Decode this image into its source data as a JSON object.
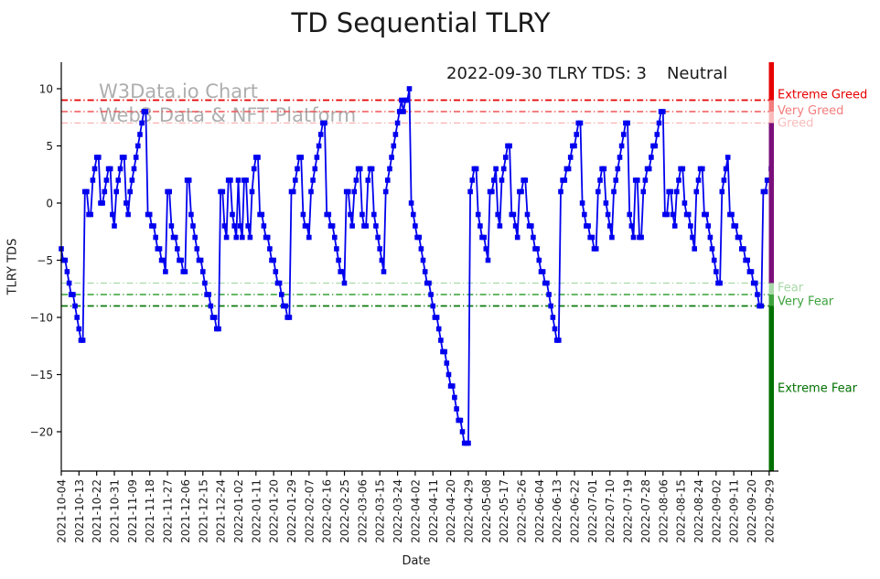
{
  "title": "TD Sequential TLRY",
  "watermark": {
    "line1": "W3Data.io Chart",
    "line2": "Web3 Data & NFT Platform",
    "color": "#aeaeae"
  },
  "chart_data": {
    "type": "line",
    "title": "TD Sequential TLRY",
    "xlabel": "Date",
    "ylabel": "TLRY TDS",
    "ylim": [
      -23.4,
      12.36
    ],
    "grid": false,
    "legend_position": "none",
    "yticks": [
      10,
      5,
      0,
      -5,
      -10,
      -15,
      -20
    ],
    "ytick_labels": [
      "10",
      "5",
      "0",
      "−5",
      "−10",
      "−15",
      "−20"
    ],
    "x_tick_every": 9,
    "x_tick_labels": [
      "2021-10-04",
      "2021-10-13",
      "2021-10-22",
      "2021-10-31",
      "2021-11-09",
      "2021-11-18",
      "2021-11-27",
      "2021-12-06",
      "2021-12-15",
      "2021-12-24",
      "2022-01-02",
      "2022-01-11",
      "2022-01-20",
      "2022-01-29",
      "2022-02-07",
      "2022-02-16",
      "2022-02-25",
      "2022-03-06",
      "2022-03-15",
      "2022-03-24",
      "2022-04-02",
      "2022-04-11",
      "2022-04-20",
      "2022-04-29",
      "2022-05-08",
      "2022-05-17",
      "2022-05-26",
      "2022-06-04",
      "2022-06-13",
      "2022-06-22",
      "2022-07-01",
      "2022-07-10",
      "2022-07-19",
      "2022-07-28",
      "2022-08-06",
      "2022-08-15",
      "2022-08-24",
      "2022-09-02",
      "2022-09-11",
      "2022-09-20",
      "2022-09-29"
    ],
    "annotations": [
      {
        "text": "2022-09-30 TLRY TDS: 3",
        "color": "#1a1a1a"
      },
      {
        "text": "Neutral",
        "color": "#800080"
      }
    ],
    "thresholds": [
      {
        "value": 9,
        "color": "#e60000",
        "width": 1.7
      },
      {
        "value": 8,
        "color": "#f05454",
        "width": 1.5
      },
      {
        "value": 7,
        "color": "#f9b0b0",
        "width": 1.3
      },
      {
        "value": -7,
        "color": "#a6d9a6",
        "width": 1.3
      },
      {
        "value": -8,
        "color": "#33a033",
        "width": 1.5
      },
      {
        "value": -9,
        "color": "#0b7a0b",
        "width": 1.8
      }
    ],
    "zones": [
      {
        "label": "Extreme Greed",
        "color": "#e60000",
        "from": 9,
        "to": 12.36,
        "label_v": 9.5
      },
      {
        "label": "Very Greed",
        "color": "#f37d7d",
        "from": 8,
        "to": 9,
        "label_v": 8.1
      },
      {
        "label": "Greed",
        "color": "#f8bcbc",
        "from": 7,
        "to": 8,
        "label_v": 7.0
      },
      {
        "label": "",
        "color": "#7a0f7a",
        "from": -7,
        "to": 7,
        "label_v": null
      },
      {
        "label": "Fear",
        "color": "#a8d8a8",
        "from": -8,
        "to": -7,
        "label_v": -7.4
      },
      {
        "label": "Very Fear",
        "color": "#3da23d",
        "from": -9,
        "to": -8,
        "label_v": -8.6
      },
      {
        "label": "Extreme Fear",
        "color": "#007000",
        "from": -23.4,
        "to": -9,
        "label_v": -16.2
      }
    ],
    "series": [
      {
        "name": "TLRY TDS",
        "color": "#0000ee",
        "marker": "square",
        "values": [
          -4,
          -5,
          -5,
          -6,
          -7,
          -8,
          -8,
          -9,
          -10,
          -11,
          -12,
          -12,
          1,
          1,
          -1,
          -1,
          2,
          3,
          4,
          4,
          0,
          0,
          1,
          2,
          3,
          3,
          -1,
          -2,
          1,
          2,
          3,
          4,
          4,
          0,
          -1,
          1,
          2,
          3,
          4,
          5,
          6,
          7,
          8,
          8,
          -1,
          -1,
          -2,
          -2,
          -3,
          -4,
          -4,
          -5,
          -5,
          -6,
          1,
          1,
          -2,
          -3,
          -3,
          -4,
          -5,
          -5,
          -6,
          -6,
          2,
          2,
          -1,
          -2,
          -3,
          -4,
          -5,
          -5,
          -6,
          -7,
          -8,
          -8,
          -9,
          -10,
          -10,
          -11,
          -11,
          1,
          1,
          -2,
          -3,
          2,
          2,
          -1,
          -2,
          -3,
          2,
          -2,
          -3,
          2,
          2,
          -2,
          -3,
          1,
          3,
          4,
          4,
          -1,
          -1,
          -2,
          -3,
          -3,
          -4,
          -5,
          -5,
          -6,
          -7,
          -7,
          -8,
          -9,
          -9,
          -10,
          -10,
          1,
          1,
          2,
          3,
          4,
          4,
          -1,
          -2,
          -2,
          -3,
          1,
          2,
          3,
          4,
          5,
          6,
          7,
          7,
          -1,
          -1,
          -2,
          -2,
          -3,
          -4,
          -5,
          -6,
          -6,
          -7,
          1,
          1,
          -1,
          -2,
          1,
          2,
          3,
          3,
          -1,
          -2,
          -2,
          2,
          3,
          3,
          -1,
          -2,
          -3,
          -4,
          -5,
          -6,
          1,
          2,
          3,
          4,
          5,
          6,
          7,
          8,
          9,
          8,
          9,
          9,
          10,
          0,
          -1,
          -2,
          -3,
          -3,
          -4,
          -5,
          -6,
          -7,
          -7,
          -8,
          -9,
          -10,
          -10,
          -11,
          -12,
          -13,
          -13,
          -14,
          -15,
          -16,
          -16,
          -17,
          -18,
          -19,
          -19,
          -20,
          -21,
          -21,
          -21,
          1,
          2,
          3,
          3,
          -1,
          -2,
          -3,
          -3,
          -4,
          -5,
          1,
          1,
          2,
          3,
          -1,
          -2,
          2,
          3,
          4,
          5,
          5,
          -1,
          -1,
          -2,
          -3,
          1,
          1,
          2,
          2,
          -1,
          -2,
          -2,
          -3,
          -4,
          -4,
          -5,
          -6,
          -6,
          -7,
          -7,
          -8,
          -9,
          -10,
          -11,
          -12,
          -12,
          1,
          2,
          2,
          3,
          3,
          4,
          5,
          5,
          6,
          7,
          7,
          0,
          -1,
          -2,
          -2,
          -3,
          -3,
          -4,
          -4,
          1,
          2,
          3,
          3,
          0,
          -1,
          -2,
          -3,
          1,
          2,
          3,
          4,
          5,
          6,
          7,
          7,
          -1,
          -2,
          -3,
          2,
          2,
          -3,
          -3,
          1,
          2,
          3,
          3,
          4,
          5,
          5,
          6,
          7,
          8,
          8,
          -1,
          -1,
          1,
          1,
          -1,
          -2,
          1,
          2,
          3,
          3,
          0,
          -1,
          -1,
          -2,
          -3,
          -4,
          1,
          2,
          3,
          3,
          -1,
          -1,
          -2,
          -3,
          -4,
          -5,
          -6,
          -7,
          -7,
          1,
          2,
          3,
          4,
          -1,
          -1,
          -2,
          -2,
          -3,
          -3,
          -4,
          -4,
          -5,
          -5,
          -6,
          -6,
          -7,
          -7,
          -8,
          -9,
          -9,
          1,
          1,
          2,
          2,
          3
        ]
      }
    ]
  }
}
